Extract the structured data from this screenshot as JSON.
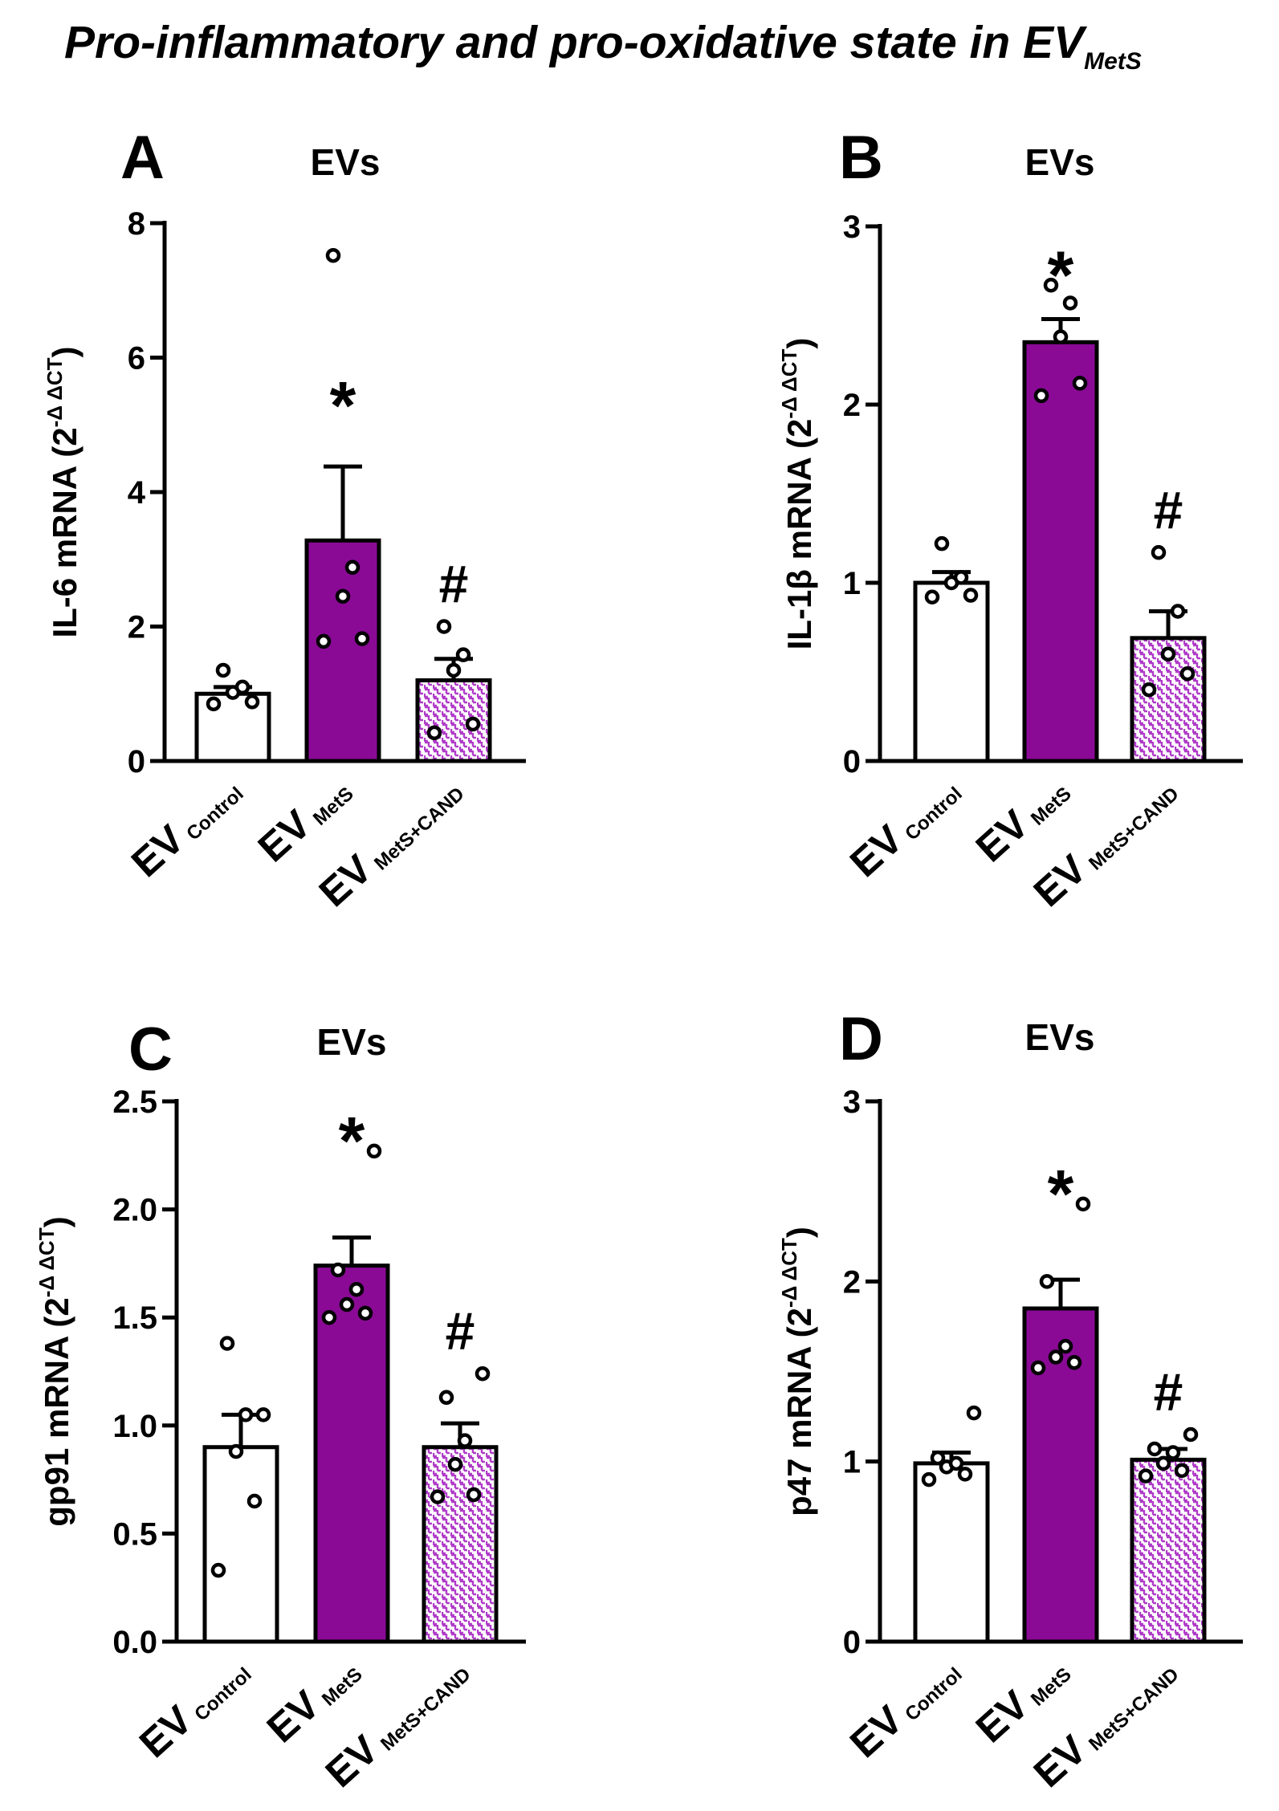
{
  "figure": {
    "title_main": "Pro-inflammatory and pro-oxidative state in EV",
    "title_sub": "MetS"
  },
  "colors": {
    "control": "#ffffff",
    "mets": "#8a0a96",
    "cand_pattern": "#b03cc8",
    "axis": "#000000",
    "dot_fill": "#ffffff"
  },
  "groups": [
    {
      "main": "EV",
      "sub": "Control"
    },
    {
      "main": "EV",
      "sub": "MetS"
    },
    {
      "main": "EV",
      "sub": "MetS+CAND"
    }
  ],
  "chart_data": [
    {
      "type": "bar",
      "panel": "A",
      "title": "EVs",
      "ylabel_main": "IL-6 mRNA (2",
      "ylabel_sup": "-Δ ΔCT",
      "ylabel_close": ")",
      "ylim": [
        0,
        8
      ],
      "yticks": [
        0,
        2,
        4,
        6,
        8
      ],
      "tick_labels": [
        "0",
        "2",
        "4",
        "6",
        "8"
      ],
      "categories": [
        "EV Control",
        "EV MetS",
        "EV MetS+CAND"
      ],
      "values": [
        1.0,
        3.28,
        1.2
      ],
      "errors": [
        0.1,
        1.1,
        0.32
      ],
      "points": [
        [
          0.85,
          0.88,
          1.02,
          1.1,
          1.35
        ],
        [
          1.78,
          1.82,
          2.45,
          2.88,
          7.52
        ],
        [
          0.42,
          0.55,
          1.35,
          1.58,
          2.0
        ]
      ],
      "annotations": [
        "",
        "*",
        "#"
      ]
    },
    {
      "type": "bar",
      "panel": "B",
      "title": "EVs",
      "ylabel_main": "IL-1β mRNA (2",
      "ylabel_sup": "-Δ ΔCT",
      "ylabel_close": ")",
      "ylim": [
        0,
        3
      ],
      "yticks": [
        0,
        1,
        2,
        3
      ],
      "tick_labels": [
        "0",
        "1",
        "2",
        "3"
      ],
      "categories": [
        "EV Control",
        "EV MetS",
        "EV MetS+CAND"
      ],
      "values": [
        1.0,
        2.35,
        0.69
      ],
      "errors": [
        0.06,
        0.13,
        0.15
      ],
      "points": [
        [
          0.92,
          0.93,
          1.0,
          1.03,
          1.22
        ],
        [
          2.05,
          2.12,
          2.38,
          2.57,
          2.67
        ],
        [
          0.4,
          0.49,
          0.6,
          0.84,
          1.17
        ]
      ],
      "annotations": [
        "",
        "*",
        "#"
      ]
    },
    {
      "type": "bar",
      "panel": "C",
      "title": "EVs",
      "ylabel_main": "gp91 mRNA (2",
      "ylabel_sup": "-Δ ΔCT",
      "ylabel_close": ")",
      "ylim": [
        0,
        2.5
      ],
      "yticks": [
        0,
        0.5,
        1.0,
        1.5,
        2.0,
        2.5
      ],
      "tick_labels": [
        "0.0",
        "0.5",
        "1.0",
        "1.5",
        "2.0",
        "2.5"
      ],
      "categories": [
        "EV Control",
        "EV MetS",
        "EV MetS+CAND"
      ],
      "values": [
        0.9,
        1.74,
        0.9
      ],
      "errors": [
        0.15,
        0.13,
        0.11
      ],
      "points": [
        [
          0.33,
          0.65,
          0.88,
          1.05,
          1.38,
          1.05
        ],
        [
          1.5,
          1.52,
          1.56,
          1.63,
          1.72,
          2.27
        ],
        [
          0.67,
          0.68,
          0.82,
          0.93,
          1.13,
          1.24
        ]
      ],
      "annotations": [
        "",
        "*",
        "#"
      ]
    },
    {
      "type": "bar",
      "panel": "D",
      "title": "EVs",
      "ylabel_main": "p47 mRNA (2",
      "ylabel_sup": "-Δ ΔCT",
      "ylabel_close": ")",
      "ylim": [
        0,
        3
      ],
      "yticks": [
        0,
        1,
        2,
        3
      ],
      "tick_labels": [
        "0",
        "1",
        "2",
        "3"
      ],
      "categories": [
        "EV Control",
        "EV MetS",
        "EV MetS+CAND"
      ],
      "values": [
        0.99,
        1.85,
        1.01
      ],
      "errors": [
        0.06,
        0.16,
        0.06
      ],
      "points": [
        [
          0.9,
          0.93,
          0.97,
          0.99,
          1.02,
          1.27
        ],
        [
          1.52,
          1.55,
          1.58,
          1.64,
          2.0,
          2.43
        ],
        [
          0.92,
          0.95,
          0.99,
          1.05,
          1.07,
          1.15
        ]
      ],
      "annotations": [
        "",
        "*",
        "#"
      ]
    }
  ]
}
